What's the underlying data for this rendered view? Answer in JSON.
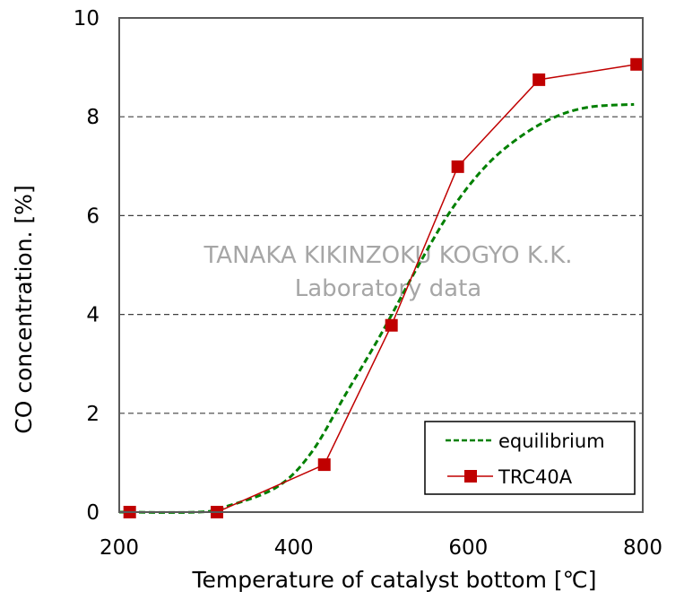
{
  "chart_data": {
    "type": "line",
    "title": "",
    "xlabel": "Temperature of catalyst bottom [℃]",
    "ylabel": "CO concentration. [%]",
    "xlim": [
      200,
      800
    ],
    "ylim": [
      0,
      10
    ],
    "xticks": [
      200,
      400,
      600,
      800
    ],
    "yticks": [
      0,
      2,
      4,
      6,
      8,
      10
    ],
    "grid": "horizontal dashed",
    "legend": "bottom-right",
    "watermark": [
      "TANAKA KIKINZOKU KOGYO K.K.",
      "Laboratory data"
    ],
    "series": [
      {
        "name": "equilibrium",
        "style": "dashed",
        "color": "#008000",
        "x": [
          200,
          290,
          320,
          380,
          420,
          460,
          500,
          540,
          580,
          620,
          660,
          700,
          740,
          790
        ],
        "y": [
          0,
          0,
          0.1,
          0.5,
          1.2,
          2.4,
          3.6,
          4.9,
          6.1,
          7.0,
          7.6,
          8.0,
          8.2,
          8.25
        ]
      },
      {
        "name": "TRC40A",
        "style": "solid-square-markers",
        "color": "#C00000",
        "x": [
          212,
          312,
          435,
          512,
          588,
          681,
          793
        ],
        "y": [
          0,
          0,
          0.96,
          3.78,
          6.99,
          8.75,
          9.06
        ]
      }
    ]
  }
}
